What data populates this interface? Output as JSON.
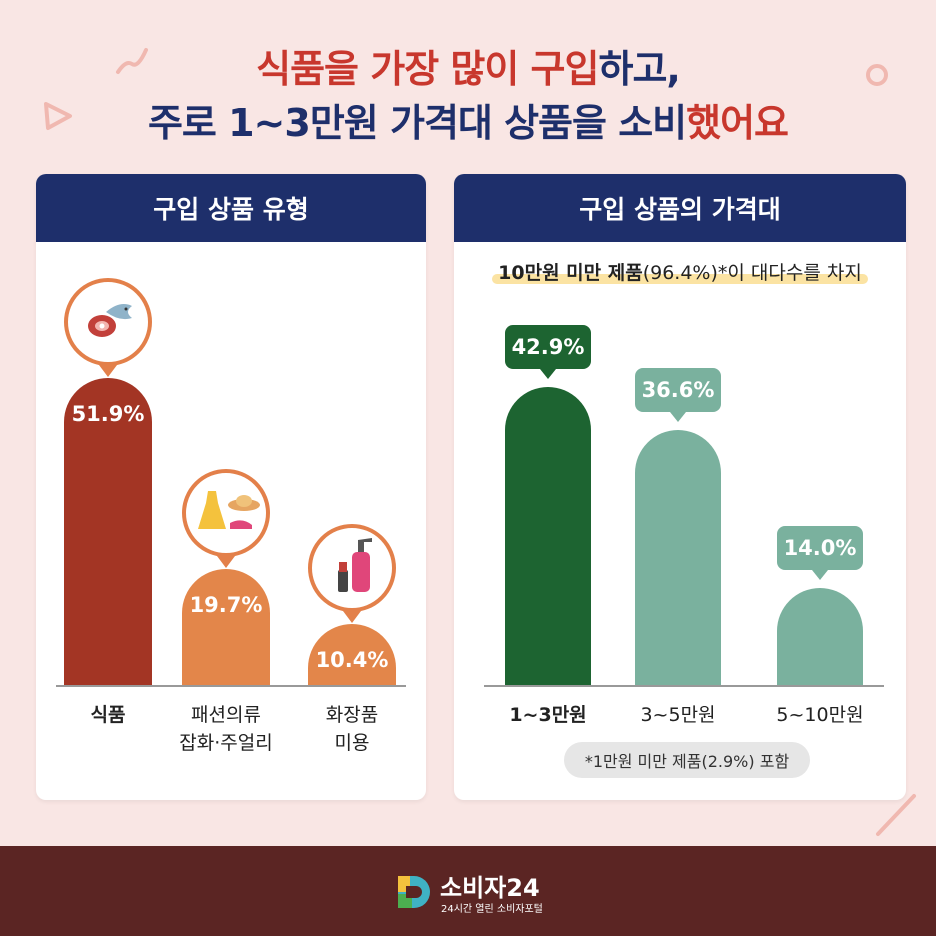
{
  "header": {
    "line1_part1": "식품을 가장 많이 구입",
    "line1_part2": "하고,",
    "line2_part1": "주로 1~3만원 가격대 상품을 소비",
    "line2_part2": "했어요"
  },
  "left_panel": {
    "title": "구입 상품 유형"
  },
  "right_panel": {
    "title": "구입 상품의 가격대",
    "subtitle_bold": "10만원 미만 제품",
    "subtitle_rest": "(96.4%)*이 대다수를 차지",
    "footnote": "*1만원 미만 제품(2.9%) 포함"
  },
  "chart_data": [
    {
      "type": "bar",
      "title": "구입 상품 유형",
      "categories": [
        [
          "식품"
        ],
        [
          "패션의류",
          "잡화·주얼리"
        ],
        [
          "화장품",
          "미용"
        ]
      ],
      "values": [
        51.9,
        19.7,
        10.4
      ],
      "value_labels": [
        "51.9%",
        "19.7%",
        "10.4%"
      ],
      "colors": [
        "#a33524",
        "#e3864a",
        "#e3864a"
      ],
      "icons": [
        "meat-fish-icon",
        "dress-hat-shoes-icon",
        "cosmetics-icon"
      ],
      "ylim": [
        0,
        55
      ]
    },
    {
      "type": "bar",
      "title": "구입 상품의 가격대",
      "categories": [
        [
          "1~3만원"
        ],
        [
          "3~5만원"
        ],
        [
          "5~10만원"
        ]
      ],
      "values": [
        42.9,
        36.6,
        14.0
      ],
      "value_labels": [
        "42.9%",
        "36.6%",
        "14.0%"
      ],
      "colors": [
        "#1d6431",
        "#7ab19e",
        "#7ab19e"
      ],
      "ylim": [
        0,
        45
      ]
    }
  ],
  "footer": {
    "brand": "소비자24",
    "tagline": "24시간 열린 소비자포털"
  },
  "colors": {
    "background": "#f9e6e4",
    "title_red": "#c8372d",
    "navy": "#1e2f6b",
    "footer": "#5b2523"
  }
}
